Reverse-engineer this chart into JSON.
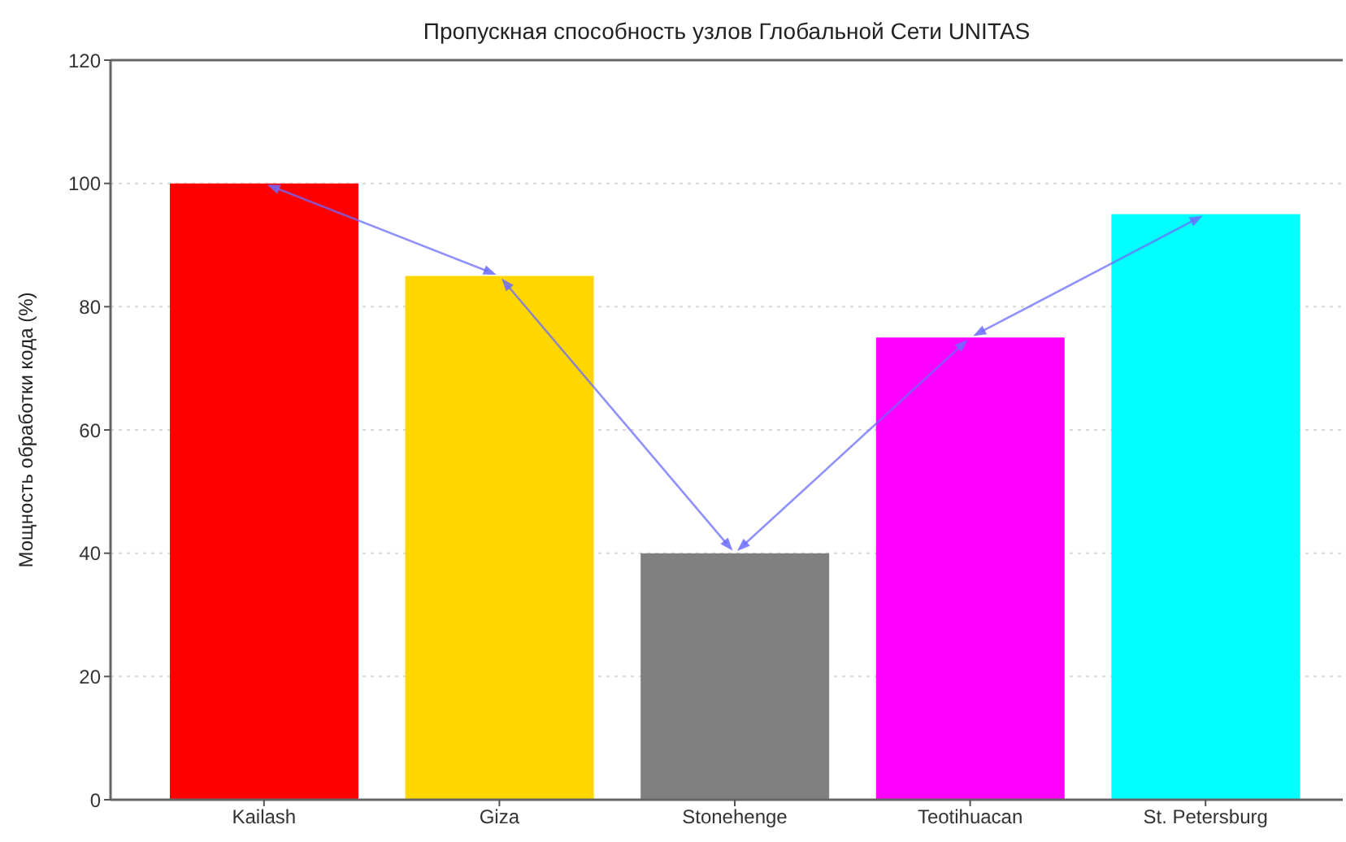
{
  "chart_data": {
    "type": "bar",
    "title": "Пропускная способность узлов Глобальной Сети UNITAS",
    "ylabel": "Мощность обработки кода (%)",
    "categories": [
      "Kailash",
      "Giza",
      "Stonehenge",
      "Teotihuacan",
      "St. Petersburg"
    ],
    "values": [
      100,
      85,
      40,
      75,
      95
    ],
    "colors": [
      "#ff0000",
      "#ffd700",
      "#808080",
      "#ff00ff",
      "#00ffff"
    ],
    "ylim": [
      0,
      120
    ],
    "yticks": [
      0,
      20,
      40,
      60,
      80,
      100,
      120
    ],
    "grid": "y"
  }
}
